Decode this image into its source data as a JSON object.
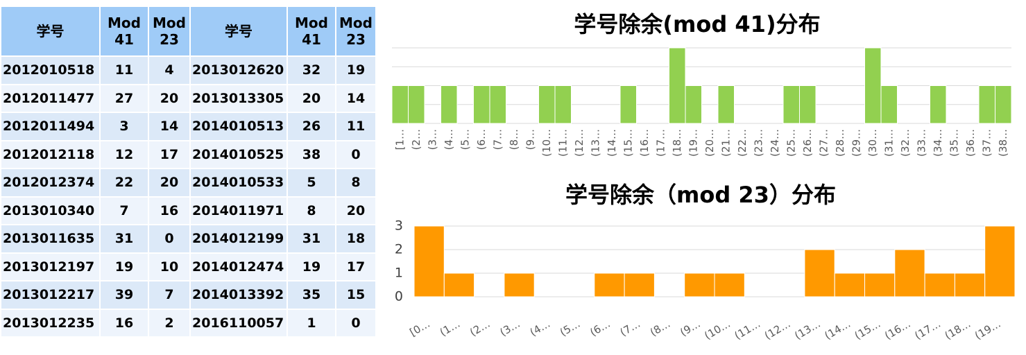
{
  "table": {
    "header": [
      "学号",
      "Mod 41",
      "Mod 23",
      "学号",
      "Mod 41",
      "Mod 23"
    ],
    "rows": [
      [
        "2012010518",
        11,
        4,
        "2013012620",
        32,
        19
      ],
      [
        "2012011477",
        27,
        20,
        "2013013305",
        20,
        14
      ],
      [
        "2012011494",
        3,
        14,
        "2014010513",
        26,
        11
      ],
      [
        "2012012118",
        12,
        17,
        "2014010525",
        38,
        0
      ],
      [
        "2012012374",
        22,
        20,
        "2014010533",
        5,
        8
      ],
      [
        "2013010340",
        7,
        16,
        "2014011971",
        8,
        20
      ],
      [
        "2013011635",
        31,
        0,
        "2014012199",
        31,
        18
      ],
      [
        "2013012197",
        19,
        10,
        "2014012474",
        19,
        17
      ],
      [
        "2013012217",
        39,
        7,
        "2014013392",
        35,
        15
      ],
      [
        "2013012235",
        16,
        2,
        "2016110057",
        1,
        0
      ]
    ]
  },
  "chart_data": [
    {
      "type": "bar",
      "title": "学号除余(mod 41)分布",
      "categories": [
        "[1…",
        "(2…",
        "(3…",
        "(4…",
        "(5…",
        "(6…",
        "(7…",
        "(8…",
        "(9…",
        "(10…",
        "(11…",
        "(12…",
        "(13…",
        "(14…",
        "(15…",
        "(16…",
        "(17…",
        "(18…",
        "(19…",
        "(20…",
        "(21…",
        "(22…",
        "(23…",
        "(24…",
        "(25…",
        "(26…",
        "(27…",
        "(28…",
        "(29…",
        "(30…",
        "(31…",
        "(32…",
        "(33…",
        "(34…",
        "(35…",
        "(36…",
        "(37…",
        "(38…"
      ],
      "values": [
        1,
        1,
        0,
        1,
        0,
        1,
        1,
        0,
        0,
        1,
        1,
        0,
        0,
        0,
        1,
        0,
        0,
        2,
        1,
        0,
        1,
        0,
        0,
        0,
        1,
        1,
        0,
        0,
        0,
        2,
        1,
        0,
        0,
        1,
        0,
        0,
        1,
        1
      ],
      "color": "#92d050",
      "ylim": [
        0,
        2
      ],
      "yticks": [
        0,
        0.5,
        1,
        1.5,
        2
      ],
      "grid": true
    },
    {
      "type": "bar",
      "title": "学号除余（mod 23）分布",
      "categories": [
        "[0…",
        "(1…",
        "(2…",
        "(3…",
        "(4…",
        "(5…",
        "(6…",
        "(7…",
        "(8…",
        "(9…",
        "(10…",
        "(11…",
        "(12…",
        "(13…",
        "(14…",
        "(15…",
        "(16…",
        "(17…",
        "(18…",
        "(19…"
      ],
      "values": [
        3,
        1,
        0,
        1,
        0,
        0,
        1,
        1,
        0,
        1,
        1,
        0,
        0,
        2,
        1,
        1,
        2,
        1,
        1,
        3
      ],
      "color": "#ff9900",
      "ylim": [
        0,
        3
      ],
      "yticks": [
        0,
        1,
        2,
        3
      ],
      "grid": true
    }
  ]
}
